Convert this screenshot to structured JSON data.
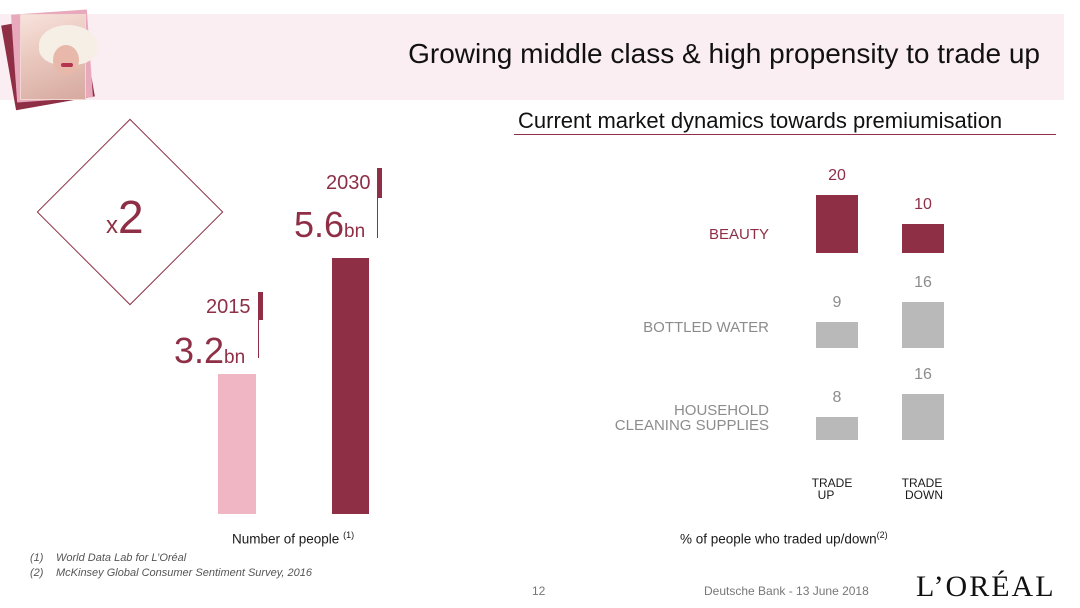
{
  "title": "Growing middle class & high propensity to trade up",
  "subtitle": "Current market dynamics towards premiumisation",
  "left_panel": {
    "multiplier_prefix": "x",
    "multiplier_value": "2",
    "bars": [
      {
        "year": "2015",
        "value_text": "3.2",
        "unit": "bn",
        "value": 3.2,
        "color": "#f0b6c3"
      },
      {
        "year": "2030",
        "value_text": "5.6",
        "unit": "bn",
        "value": 5.6,
        "color": "#8e2f46"
      }
    ],
    "caption": "Number of people",
    "caption_note": "(1)"
  },
  "chart_data": {
    "type": "bar",
    "categories": [
      "BEAUTY",
      "BOTTLED WATER",
      "HOUSEHOLD CLEANING SUPPLIES"
    ],
    "category_lines": [
      [
        "BEAUTY"
      ],
      [
        "BOTTLED WATER"
      ],
      [
        "HOUSEHOLD",
        "CLEANING SUPPLIES"
      ]
    ],
    "series": [
      {
        "name": "TRADE UP",
        "label_lines": [
          "TRADE",
          "UP"
        ],
        "values": [
          20,
          9,
          8
        ]
      },
      {
        "name": "TRADE DOWN",
        "label_lines": [
          "TRADE",
          "DOWN"
        ],
        "values": [
          10,
          16,
          16
        ]
      }
    ],
    "xlabel": "% of people who traded up/down",
    "xlabel_note": "(2)",
    "colors": {
      "highlight": "#8e2f46",
      "neutral": "#b9b9b9"
    }
  },
  "footnotes": [
    {
      "num": "(1)",
      "text": "World Data Lab for L’Oréal"
    },
    {
      "num": "(2)",
      "text": "McKinsey Global Consumer Sentiment Survey, 2016"
    }
  ],
  "footer": {
    "page_number": "12",
    "event": "Deutsche Bank - 13 June 2018",
    "logo_text": "L’ORÉAL"
  },
  "colors": {
    "brand": "#8e2f46",
    "header_band": "#fbeef2",
    "light_pink": "#f0b6c3"
  }
}
